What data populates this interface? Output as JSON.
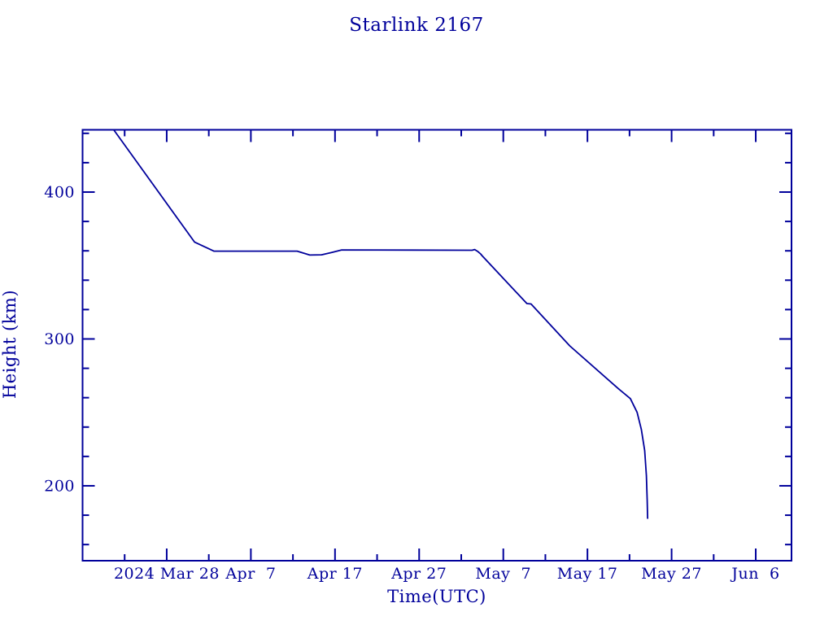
{
  "chart_data": {
    "type": "line",
    "title": "Starlink 2167",
    "xlabel": "Time(UTC)",
    "ylabel": "Height (km)",
    "line_color": "#00009b",
    "background_color": "#ffffff",
    "grid": false,
    "legend": "none",
    "x_unit": "days since 2024 Mar 18 00:00 UTC",
    "xlim": [
      0,
      84.25
    ],
    "ylim": [
      149.0,
      442.4
    ],
    "x_major_ticks": [
      {
        "d": 10,
        "label": "2024 Mar 28"
      },
      {
        "d": 20,
        "label": "Apr  7"
      },
      {
        "d": 30,
        "label": "Apr 17"
      },
      {
        "d": 40,
        "label": "Apr 27"
      },
      {
        "d": 50,
        "label": "May  7"
      },
      {
        "d": 60,
        "label": "May 17"
      },
      {
        "d": 70,
        "label": "May 27"
      },
      {
        "d": 80,
        "label": "Jun  6"
      }
    ],
    "x_minor_ticks": [
      5,
      15,
      25,
      35,
      45,
      55,
      65,
      75
    ],
    "y_major_ticks": [
      {
        "v": 200,
        "label": "200"
      },
      {
        "v": 300,
        "label": "300"
      },
      {
        "v": 400,
        "label": "400"
      }
    ],
    "y_minor_ticks": [
      160,
      180,
      220,
      240,
      260,
      280,
      320,
      340,
      360,
      380,
      420,
      440
    ],
    "series": [
      {
        "name": "Starlink 2167 orbital height",
        "points_days_height_km": [
          [
            3.7,
            442.4
          ],
          [
            13.3,
            366.0
          ],
          [
            15.6,
            359.8
          ],
          [
            25.5,
            359.8
          ],
          [
            27.0,
            357.1
          ],
          [
            28.4,
            357.3
          ],
          [
            29.6,
            358.9
          ],
          [
            30.8,
            360.6
          ],
          [
            46.3,
            360.4
          ],
          [
            46.6,
            360.9
          ],
          [
            47.0,
            359.4
          ],
          [
            47.3,
            357.9
          ],
          [
            47.5,
            356.5
          ],
          [
            52.8,
            324.1
          ],
          [
            53.3,
            323.8
          ],
          [
            57.9,
            295.3
          ],
          [
            63.7,
            266.0
          ],
          [
            65.1,
            259.4
          ],
          [
            65.9,
            250.0
          ],
          [
            66.4,
            238.4
          ],
          [
            66.8,
            224.0
          ],
          [
            67.0,
            207.0
          ],
          [
            67.1,
            190.0
          ],
          [
            67.15,
            177.9
          ]
        ]
      }
    ]
  }
}
